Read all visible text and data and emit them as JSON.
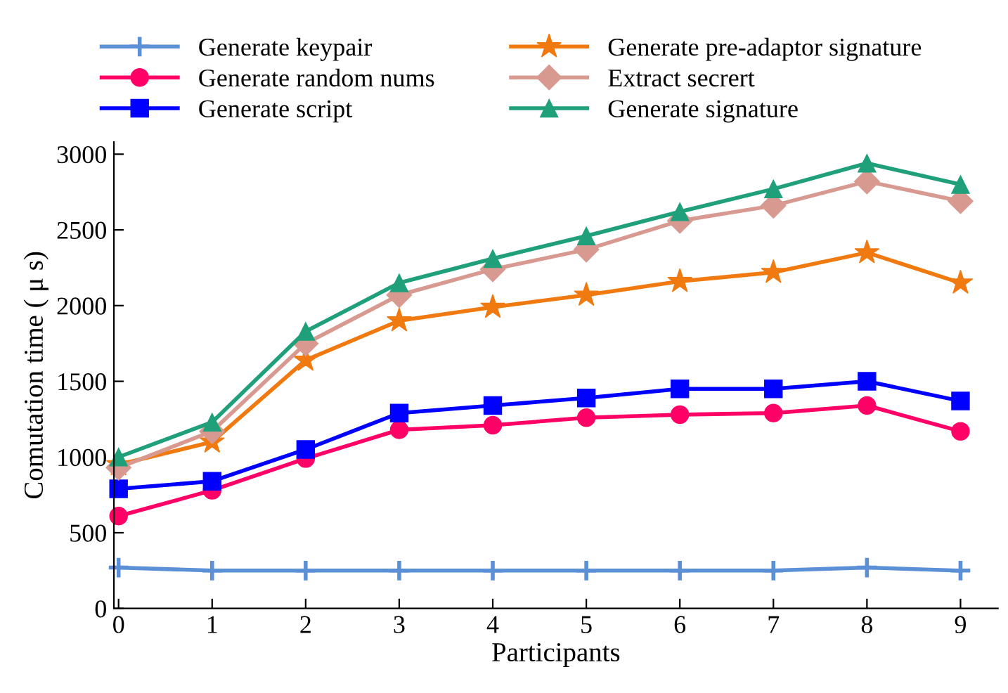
{
  "chart_data": {
    "type": "line",
    "xlabel": "Participants",
    "ylabel": "Comutation time ( μ s)",
    "x": [
      0,
      1,
      2,
      3,
      4,
      5,
      6,
      7,
      8,
      9
    ],
    "xlim": [
      -0.05,
      9.4
    ],
    "xticks": [
      0,
      1,
      2,
      3,
      4,
      5,
      6,
      7,
      8,
      9
    ],
    "ylim": [
      0,
      3080
    ],
    "yticks": [
      0,
      500,
      1000,
      1500,
      2000,
      2500,
      3000
    ],
    "grid": false,
    "legend": "top",
    "series": [
      {
        "name": "Generate keypair",
        "color": "#5b8fd6",
        "marker": "cross",
        "values": [
          270,
          250,
          250,
          250,
          250,
          250,
          250,
          250,
          270,
          250
        ]
      },
      {
        "name": "Generate random nums",
        "color": "#ff0066",
        "marker": "circle",
        "values": [
          610,
          780,
          990,
          1180,
          1210,
          1260,
          1280,
          1290,
          1340,
          1170
        ]
      },
      {
        "name": "Generate script",
        "color": "#0000ff",
        "marker": "square",
        "values": [
          790,
          840,
          1050,
          1290,
          1340,
          1390,
          1450,
          1450,
          1500,
          1370
        ]
      },
      {
        "name": "Generate pre-adaptor signature",
        "color": "#f07a10",
        "marker": "star",
        "values": [
          950,
          1100,
          1640,
          1900,
          1990,
          2070,
          2160,
          2220,
          2350,
          2150
        ]
      },
      {
        "name": "Extract secrert",
        "color": "#d89a90",
        "marker": "diamond",
        "values": [
          930,
          1170,
          1750,
          2070,
          2240,
          2370,
          2560,
          2660,
          2820,
          2690
        ]
      },
      {
        "name": "Generate signature",
        "color": "#1fa07a",
        "marker": "triangle",
        "values": [
          1000,
          1230,
          1830,
          2150,
          2310,
          2460,
          2620,
          2770,
          2940,
          2800
        ]
      }
    ]
  }
}
